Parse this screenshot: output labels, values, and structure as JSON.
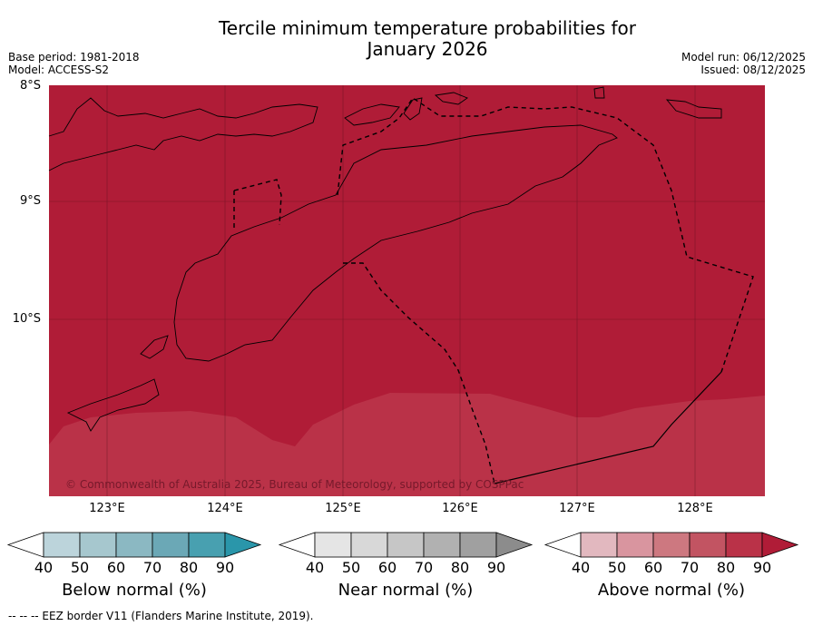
{
  "title_line1": "Tercile minimum temperature probabilities for",
  "title_line2": "January 2026",
  "base_period": "Base period: 1981-2018",
  "model": "Model: ACCESS-S2",
  "model_run": "Model run: 06/12/2025",
  "issued": "Issued: 08/12/2025",
  "lat_labels": [
    "8°S",
    "9°S",
    "10°S"
  ],
  "lon_labels": [
    "123°E",
    "124°E",
    "125°E",
    "126°E",
    "127°E",
    "128°E"
  ],
  "copyright": "© Commonwealth of Australia 2025, Bureau of Meteorology, supported by COSPPac",
  "colorbars": [
    {
      "label": "Below normal (%)",
      "ticks": [
        "40",
        "50",
        "60",
        "70",
        "80",
        "90"
      ],
      "colors": [
        "#ffffff",
        "#bcd4db",
        "#a6c7ce",
        "#8bb8c2",
        "#6ba8b6",
        "#48a0b0",
        "#2a96aa"
      ]
    },
    {
      "label": "Near normal (%)",
      "ticks": [
        "40",
        "50",
        "60",
        "70",
        "80",
        "90"
      ],
      "colors": [
        "#ffffff",
        "#e5e5e5",
        "#d8d8d8",
        "#c6c6c6",
        "#b1b1b1",
        "#a0a0a0",
        "#8c8c8c"
      ]
    },
    {
      "label": "Above normal (%)",
      "ticks": [
        "40",
        "50",
        "60",
        "70",
        "80",
        "90"
      ],
      "colors": [
        "#ffffff",
        "#e2b8bf",
        "#d9959f",
        "#cd7880",
        "#c25462",
        "#ba3248",
        "#b01c37"
      ]
    }
  ],
  "regions": {
    "main_color": "#b01c37",
    "secondary_color": "#ba3248"
  },
  "footer": "--  --  -- EEZ border V11 (Flanders Marine Institute, 2019)."
}
